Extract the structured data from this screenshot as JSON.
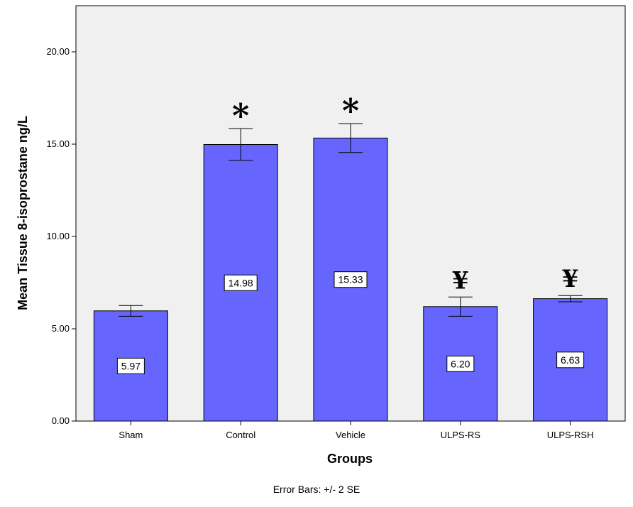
{
  "chart_data": {
    "type": "bar",
    "categories": [
      "Sham",
      "Control",
      "Vehicle",
      "ULPS-RS",
      "ULPS-RSH"
    ],
    "values": [
      5.97,
      14.98,
      15.33,
      6.2,
      6.63
    ],
    "value_labels": [
      "5.97",
      "14.98",
      "15.33",
      "6.20",
      "6.63"
    ],
    "error_low": [
      5.68,
      14.12,
      14.55,
      5.68,
      6.46
    ],
    "error_high": [
      6.26,
      15.84,
      16.11,
      6.72,
      6.8
    ],
    "significance_markers": [
      "",
      "*",
      "*",
      "¥",
      "¥"
    ],
    "xlabel": "Groups",
    "ylabel": "Mean Tissue 8-isoprostane ng/L",
    "ylim": [
      0,
      22.5
    ],
    "yticks": [
      0,
      5,
      10,
      15,
      20
    ],
    "ytick_labels": [
      "0.00",
      "5.00",
      "10.00",
      "15.00",
      "20.00"
    ],
    "footnote": "Error Bars: +/- 2 SE",
    "grid": false,
    "bar_color": "#6666ff",
    "plot_background": "#f0f0f0"
  }
}
